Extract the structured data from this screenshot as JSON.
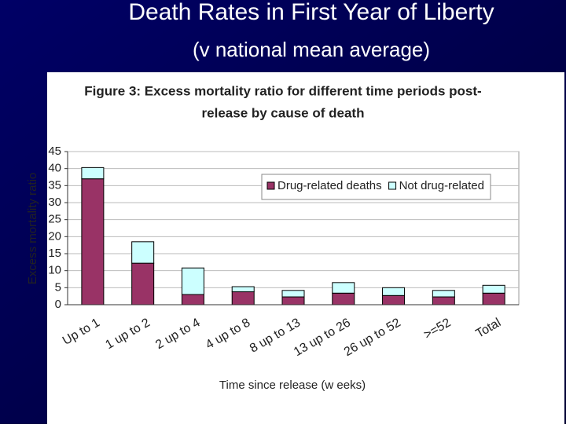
{
  "slide": {
    "title": "Death Rates in First Year of Liberty",
    "subtitle": "(v national mean average)"
  },
  "chart_data": {
    "type": "stacked-bar",
    "title": [
      "Figure 3: Excess mortality ratio for different time periods post-",
      "release by cause of death"
    ],
    "x_label": "Time since release (w eeks)",
    "y_label": "Excess mortality ratio",
    "categories": [
      "Up to 1",
      "1 up to 2",
      "2 up to 4",
      "4 up to 8",
      "8 up to 13",
      "13 up to 26",
      "26 up to 52",
      ">=52",
      "Total"
    ],
    "series": [
      {
        "name": "Drug-related deaths",
        "color": "#993366",
        "values": [
          37,
          12.2,
          3,
          3.8,
          2.3,
          3.4,
          2.7,
          2.3,
          3.4
        ]
      },
      {
        "name": "Not drug-related",
        "color": "#ccffff",
        "values": [
          3.3,
          6.3,
          7.8,
          1.5,
          1.9,
          3.1,
          2.3,
          1.9,
          2.3
        ]
      }
    ],
    "ylim": [
      0,
      45
    ],
    "yticks": [
      0,
      5,
      10,
      15,
      20,
      25,
      30,
      35,
      40,
      45
    ],
    "grid": true,
    "legend": "top-right"
  }
}
